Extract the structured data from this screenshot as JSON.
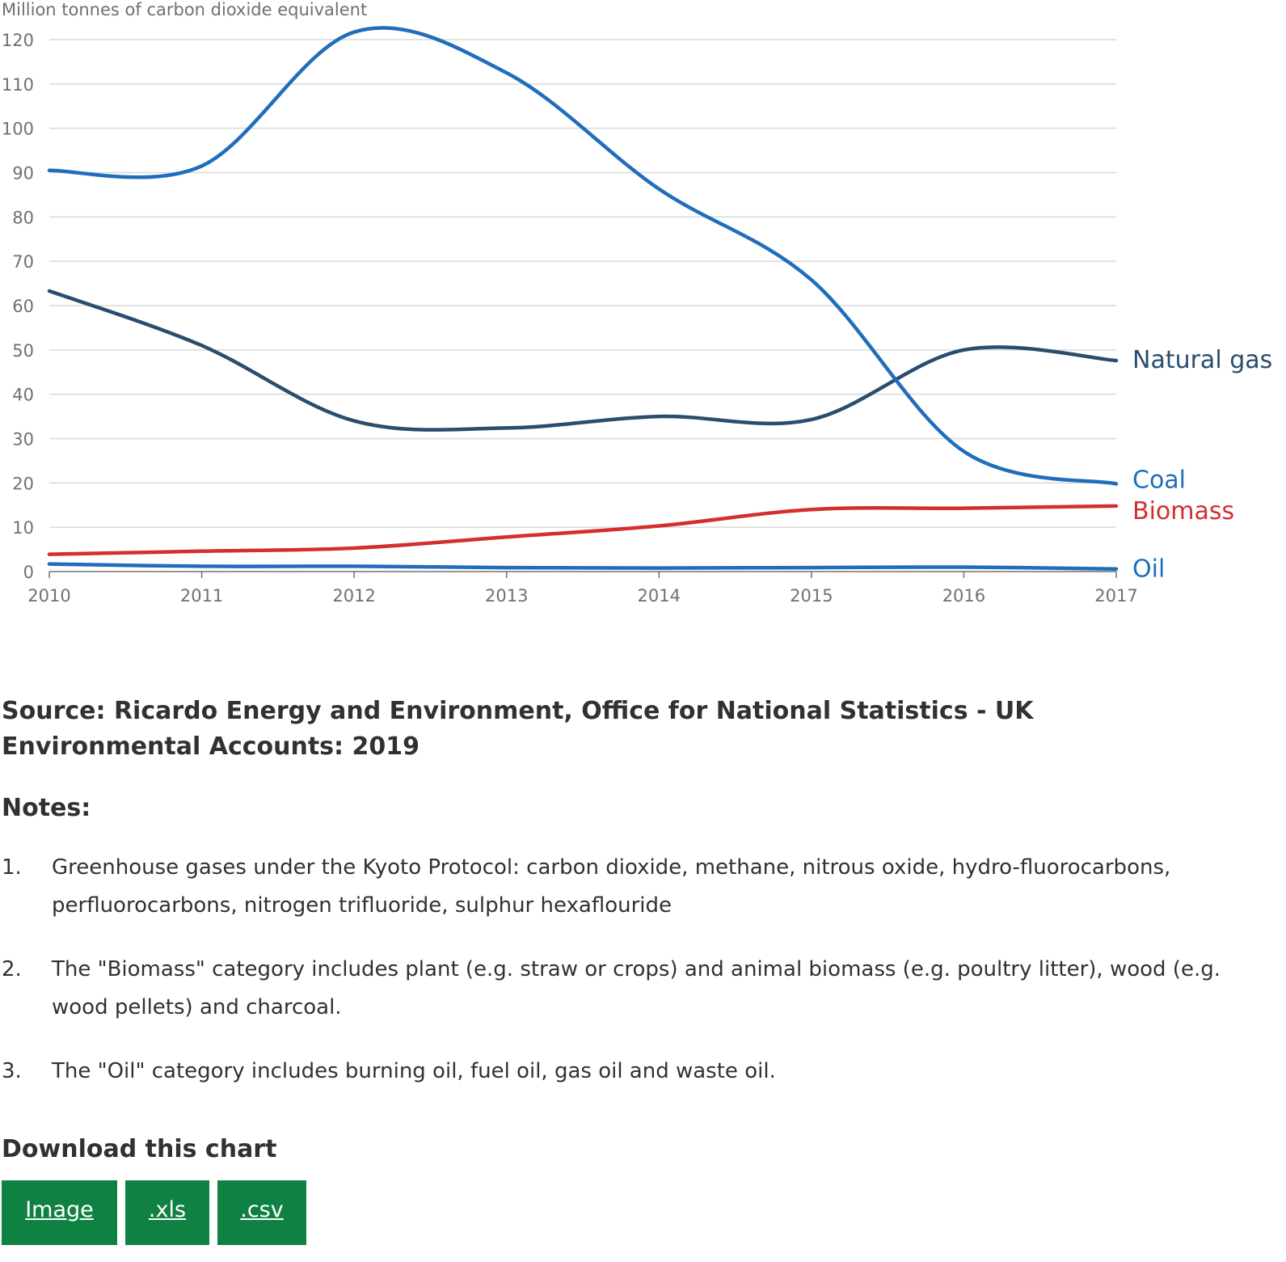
{
  "chart_data": {
    "type": "line",
    "ylabel": "Million tonnes of carbon dioxide equivalent",
    "x": [
      "2010",
      "2011",
      "2012",
      "2013",
      "2014",
      "2015",
      "2016",
      "2017"
    ],
    "ylim": [
      0,
      120
    ],
    "yticks": [
      "0",
      "10",
      "20",
      "30",
      "40",
      "50",
      "60",
      "70",
      "80",
      "90",
      "100",
      "110",
      "120"
    ],
    "grid": true,
    "series": [
      {
        "name": "Natural gas",
        "color": "#2a4d6e",
        "values": [
          63.3,
          51.0,
          34.0,
          32.4,
          35.0,
          34.3,
          50.0,
          47.6
        ]
      },
      {
        "name": "Coal",
        "color": "#206ebb",
        "values": [
          90.5,
          91.5,
          121.7,
          112.5,
          86.3,
          65.8,
          27.1,
          19.8
        ]
      },
      {
        "name": "Biomass",
        "color": "#d32f2f",
        "values": [
          3.9,
          4.6,
          5.3,
          7.8,
          10.3,
          14.0,
          14.3,
          14.8
        ]
      },
      {
        "name": "Oil",
        "color": "#206ebb",
        "values": [
          1.7,
          1.2,
          1.2,
          0.9,
          0.8,
          0.9,
          1.0,
          0.6
        ]
      }
    ]
  },
  "source": "Source: Ricardo Energy and Environment, Office for National Statistics - UK Environmental Accounts: 2019",
  "notes": {
    "heading": "Notes:",
    "items": [
      {
        "num": "1.",
        "text": "Greenhouse gases under the Kyoto Protocol: carbon dioxide, methane, nitrous oxide, hydro-fluorocarbons, perfluorocarbons, nitrogen trifluoride, sulphur hexaflouride"
      },
      {
        "num": "2.",
        "text": "The \"Biomass\" category includes plant (e.g. straw or crops) and animal biomass (e.g. poultry litter), wood (e.g. wood pellets) and charcoal."
      },
      {
        "num": "3.",
        "text": "The \"Oil\" category includes burning oil, fuel oil, gas oil and waste oil."
      }
    ]
  },
  "download": {
    "heading": "Download this chart",
    "buttons": [
      {
        "label": "Image"
      },
      {
        "label": ".xls"
      },
      {
        "label": ".csv"
      }
    ],
    "button_color": "#0f8243"
  }
}
